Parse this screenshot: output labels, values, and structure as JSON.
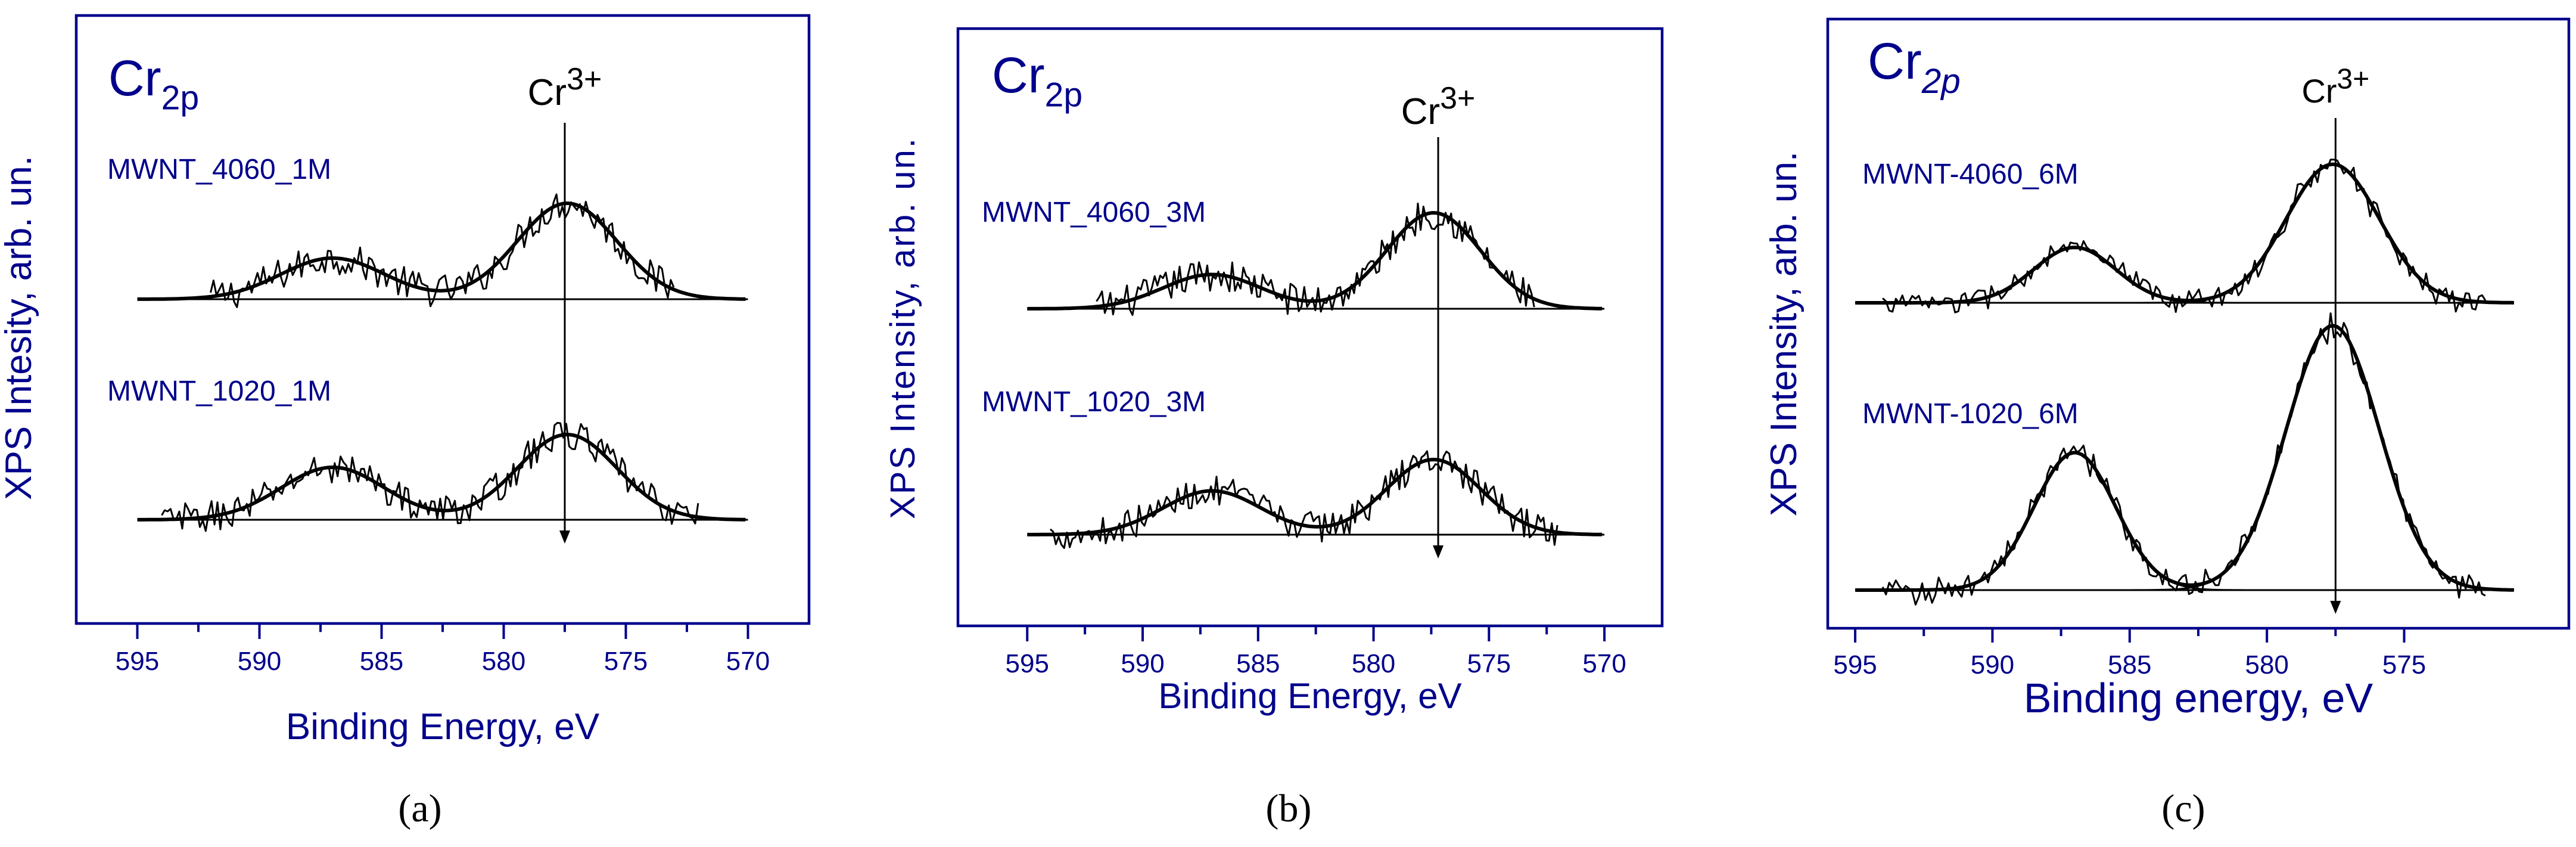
{
  "chart_data": [
    {
      "type": "line",
      "panel": "(a)",
      "element": "Cr",
      "element_sub": "2p",
      "peak_label": "Cr",
      "peak_sup": "3+",
      "peak_marker_x": 577.5,
      "xlabel": "Binding Energy, eV",
      "ylabel": "XPS Intesity, arb. un.",
      "x_ticks": [
        595,
        590,
        585,
        580,
        575,
        570
      ],
      "xlim": [
        597.5,
        567.5
      ],
      "x_reversed": true,
      "series": [
        {
          "name": "MWNT_4060_1M",
          "x_range": [
            595,
            570
          ],
          "data_range": [
            592,
            573
          ],
          "baseline": 0.0,
          "peaks": [
            {
              "center": 587.0,
              "height": 0.3,
              "fwhm": 5.0
            },
            {
              "center": 577.4,
              "height": 0.7,
              "fwhm": 4.8
            }
          ],
          "noise": 0.12
        },
        {
          "name": "MWNT_1020_1M",
          "x_range": [
            595,
            570
          ],
          "data_range": [
            594,
            572
          ],
          "baseline": 0.0,
          "peaks": [
            {
              "center": 587.0,
              "height": 0.4,
              "fwhm": 5.0
            },
            {
              "center": 577.4,
              "height": 0.65,
              "fwhm": 4.8
            }
          ],
          "noise": 0.12
        }
      ]
    },
    {
      "type": "line",
      "panel": "(b)",
      "element": "Cr",
      "element_sub": "2p",
      "peak_label": "Cr",
      "peak_sup": "3+",
      "peak_marker_x": 577.2,
      "xlabel": "Binding Energy, eV",
      "ylabel": "XPS Intensity, arb. un.",
      "x_ticks": [
        595,
        590,
        585,
        580,
        575,
        570
      ],
      "xlim": [
        598.0,
        567.5
      ],
      "x_reversed": true,
      "series": [
        {
          "name": "MWNT_4060_3M",
          "x_range": [
            595,
            570
          ],
          "data_range": [
            592,
            573
          ],
          "baseline": 0.0,
          "peaks": [
            {
              "center": 587.0,
              "height": 0.25,
              "fwhm": 5.0
            },
            {
              "center": 577.4,
              "height": 0.7,
              "fwhm": 4.8
            }
          ],
          "noise": 0.12
        },
        {
          "name": "MWNT_1020_3M",
          "x_range": [
            595,
            570
          ],
          "data_range": [
            594,
            572
          ],
          "baseline": 0.0,
          "peaks": [
            {
              "center": 587.0,
              "height": 0.35,
              "fwhm": 5.0
            },
            {
              "center": 577.4,
              "height": 0.6,
              "fwhm": 4.8
            }
          ],
          "noise": 0.12
        }
      ]
    },
    {
      "type": "line",
      "panel": "(c)",
      "element": "Cr",
      "element_sub": "2p",
      "peak_label": "Cr",
      "peak_sup": "3+",
      "peak_marker_x": 577.5,
      "xlabel": "Binding energy, eV",
      "ylabel": "XPS Intensity, arb. un.",
      "x_ticks": [
        595,
        590,
        585,
        580,
        575
      ],
      "xlim": [
        596.0,
        569.0
      ],
      "x_reversed": true,
      "series": [
        {
          "name": "MWNT-4060_6M",
          "x_range": [
            595,
            571
          ],
          "data_range": [
            594,
            572
          ],
          "baseline": 0.0,
          "peaks": [
            {
              "center": 587.0,
              "height": 0.3,
              "fwhm": 3.5
            },
            {
              "center": 577.6,
              "height": 0.75,
              "fwhm": 4.0
            }
          ],
          "noise": 0.05
        },
        {
          "name": "MWNT-1020_6M",
          "x_range": [
            595,
            571
          ],
          "data_range": [
            594,
            572
          ],
          "baseline": 0.0,
          "peaks": [
            {
              "center": 587.0,
              "height": 0.65,
              "fwhm": 3.5
            },
            {
              "center": 577.6,
              "height": 1.25,
              "fwhm": 4.0
            }
          ],
          "noise": 0.05
        }
      ]
    }
  ],
  "captions": [
    "(a)",
    "(b)",
    "(c)"
  ]
}
